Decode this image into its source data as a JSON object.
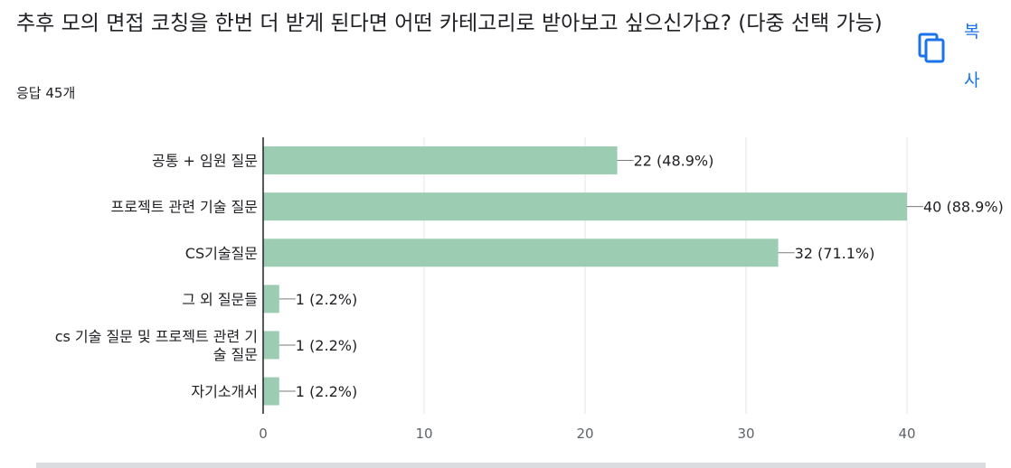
{
  "title": "추후 모의 면접 코칭을 한번 더 받게 된다면 어떤 카테고리로 받아보고 싶으신가요? (다중 선택 가능)",
  "response_count": "응답 45개",
  "copy_label": "복사",
  "icons": {
    "copy": "copy-icon"
  },
  "colors": {
    "bar": "#9ccdb3",
    "accent": "#1a73e8",
    "axis": "#202124",
    "grid": "#e6e6e6"
  },
  "chart_data": {
    "type": "bar",
    "orientation": "horizontal",
    "categories": [
      [
        "공통 + 임원 질문"
      ],
      [
        "프로젝트 관련 기술 질문"
      ],
      [
        "CS기술질문"
      ],
      [
        "그 외 질문들"
      ],
      [
        "cs 기술 질문 및 프로젝트 관련 기",
        "술 질문"
      ],
      [
        "자기소개서"
      ]
    ],
    "values": [
      22,
      40,
      32,
      1,
      1,
      1
    ],
    "data_labels": [
      "22 (48.9%)",
      "40 (88.9%)",
      "32 (71.1%)",
      "1 (2.2%)",
      "1 (2.2%)",
      "1 (2.2%)"
    ],
    "xlim": [
      0,
      40
    ],
    "xticks": [
      0,
      10,
      20,
      30,
      40
    ],
    "grid": true,
    "title": "",
    "xlabel": "",
    "ylabel": ""
  }
}
